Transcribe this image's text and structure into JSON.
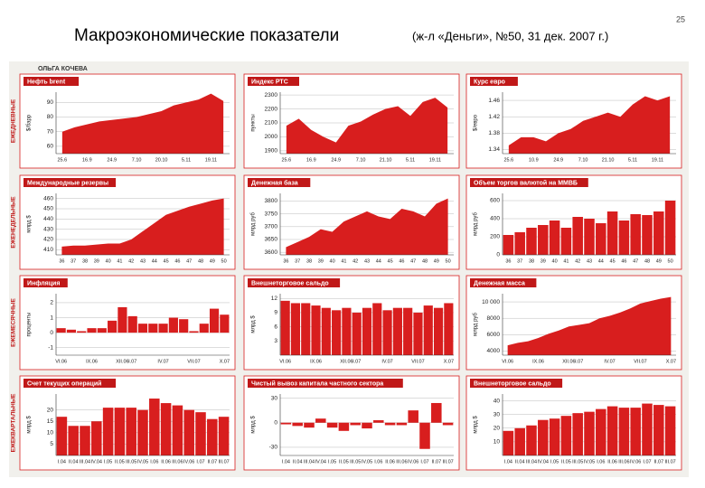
{
  "title": "Макроэкономические показатели",
  "subtitle": "(ж-л «Деньги», №50, 31 дек. 2007 г.)",
  "page_number": "25",
  "author": "ОЛЬГА КОЧЕВА",
  "row_labels": [
    "ЕЖЕДНЕВНЫЕ",
    "ЕЖЕНЕДЕЛЬНЫЕ",
    "ЕЖЕМЕСЯЧНЫЕ",
    "ЕЖЕКВАРТАЛЬНЫЕ"
  ],
  "chart_data": [
    {
      "type": "area",
      "title": "Нефть brent",
      "y_label": "$/барр",
      "color": "#d81e1e",
      "grid": true,
      "categories": [
        "25.6",
        null,
        "16.9",
        null,
        "24.9",
        null,
        "7.10",
        null,
        "20.10",
        null,
        "5.11",
        null,
        "19.11",
        null
      ],
      "values": [
        70,
        73,
        75,
        77,
        78,
        79,
        80,
        82,
        84,
        88,
        90,
        92,
        96,
        91
      ],
      "ylim": [
        55,
        97
      ],
      "yticks": [
        60,
        70,
        80,
        90
      ]
    },
    {
      "type": "area",
      "title": "Индекс РТС",
      "y_label": "пункты",
      "color": "#d81e1e",
      "grid": true,
      "categories": [
        "25.6",
        null,
        "16.9",
        null,
        "24.9",
        null,
        "7.10",
        null,
        "21.10",
        null,
        "5.11",
        null,
        "19.11",
        null
      ],
      "values": [
        2080,
        2130,
        2050,
        2000,
        1960,
        2080,
        2110,
        2160,
        2200,
        2220,
        2150,
        2250,
        2280,
        2210
      ],
      "ylim": [
        1880,
        2320
      ],
      "yticks": [
        1900,
        2000,
        2100,
        2200,
        2300
      ]
    },
    {
      "type": "area",
      "title": "Курс евро",
      "y_label": "$/евро",
      "color": "#d81e1e",
      "grid": true,
      "categories": [
        "25.6",
        null,
        "10.9",
        null,
        "24.9",
        null,
        "7.10",
        null,
        "21.10",
        null,
        "5.11",
        null,
        "19.11",
        null
      ],
      "values": [
        1.35,
        1.37,
        1.37,
        1.36,
        1.38,
        1.39,
        1.41,
        1.42,
        1.43,
        1.42,
        1.45,
        1.47,
        1.46,
        1.47
      ],
      "ylim": [
        1.33,
        1.48
      ],
      "yticks": [
        1.34,
        1.38,
        1.42,
        1.46
      ]
    },
    {
      "type": "area",
      "title": "Международные резервы",
      "y_label": "млрд $",
      "color": "#d81e1e",
      "grid": true,
      "categories": [
        "36",
        "37",
        "38",
        "39",
        "40",
        "41",
        "42",
        "43",
        "44",
        "45",
        "46",
        "47",
        "48",
        "49",
        "50"
      ],
      "values": [
        413,
        414,
        414,
        415,
        416,
        416,
        420,
        428,
        436,
        444,
        448,
        452,
        455,
        458,
        460
      ],
      "ylim": [
        405,
        465
      ],
      "yticks": [
        410,
        420,
        430,
        440,
        450,
        460
      ]
    },
    {
      "type": "area",
      "title": "Денежная база",
      "y_label": "млрд руб",
      "color": "#d81e1e",
      "grid": true,
      "categories": [
        "36",
        "37",
        "38",
        "39",
        "40",
        "41",
        "42",
        "43",
        "44",
        "45",
        "46",
        "47",
        "48",
        "49",
        "50"
      ],
      "values": [
        3620,
        3640,
        3660,
        3690,
        3680,
        3720,
        3740,
        3760,
        3740,
        3730,
        3770,
        3760,
        3740,
        3790,
        3810
      ],
      "ylim": [
        3590,
        3830
      ],
      "yticks": [
        3600,
        3650,
        3700,
        3750,
        3800
      ]
    },
    {
      "type": "bar",
      "title": "Объем торгов валютой на ММВБ",
      "y_label": "млрд руб",
      "color": "#d81e1e",
      "grid": true,
      "categories": [
        "36",
        "37",
        "38",
        "39",
        "40",
        "41",
        "42",
        "43",
        "44",
        "45",
        "46",
        "47",
        "48",
        "49",
        "50"
      ],
      "values": [
        220,
        250,
        300,
        330,
        380,
        300,
        420,
        400,
        350,
        480,
        380,
        450,
        440,
        480,
        600
      ],
      "ylim": [
        0,
        680
      ],
      "yticks": [
        0,
        200,
        400,
        600
      ]
    },
    {
      "type": "bar",
      "title": "Инфляция",
      "y_label": "проценты",
      "color": "#d81e1e",
      "grid": true,
      "categories": [
        "VI.06",
        null,
        null,
        "IX.06",
        null,
        null,
        "XII.06",
        "I.07",
        null,
        null,
        "IV.07",
        null,
        null,
        "VII.07",
        null,
        null,
        "X.07"
      ],
      "values": [
        0.3,
        0.2,
        0.1,
        0.3,
        0.3,
        0.8,
        1.7,
        1.1,
        0.6,
        0.6,
        0.6,
        1.0,
        0.9,
        0.1,
        0.6,
        1.6,
        1.2
      ],
      "ylim": [
        -1.5,
        2.6
      ],
      "yticks": [
        -1,
        0,
        1,
        2
      ]
    },
    {
      "type": "bar",
      "title": "Внешнеторговое сальдо",
      "y_label": "млрд $",
      "color": "#d81e1e",
      "grid": true,
      "categories": [
        "VI.06",
        null,
        null,
        "IX.06",
        null,
        null,
        "XII.06",
        "I.07",
        null,
        null,
        "IV.07",
        null,
        null,
        "VII.07",
        null,
        null,
        "X.07"
      ],
      "values": [
        11.5,
        11,
        11,
        10.5,
        10,
        9.5,
        10,
        9,
        10,
        11,
        9.5,
        10,
        10,
        9,
        10.5,
        10,
        11
      ],
      "ylim": [
        0,
        13
      ],
      "yticks": [
        3,
        6,
        9,
        12
      ]
    },
    {
      "type": "area",
      "title": "Денежная масса",
      "y_label": "млрд руб",
      "color": "#d81e1e",
      "grid": true,
      "categories": [
        "VI.06",
        null,
        null,
        "IX.06",
        null,
        null,
        "XII.06",
        "I.07",
        null,
        null,
        "IV.07",
        null,
        null,
        "VII.07",
        null,
        null,
        "X.07"
      ],
      "values": [
        4700,
        5000,
        5200,
        5600,
        6100,
        6500,
        7000,
        7200,
        7400,
        8000,
        8300,
        8700,
        9200,
        9800,
        10100,
        10400,
        10600
      ],
      "ylim": [
        3500,
        11000
      ],
      "yticks": [
        4000,
        6000,
        8000,
        {
          "value": 10000,
          "label": "10 000"
        }
      ]
    },
    {
      "type": "bar",
      "title": "Счет текущих операций",
      "y_label": "млрд $",
      "color": "#d81e1e",
      "grid": true,
      "categories": [
        "I.04",
        "II.04",
        "III.04",
        "IV.04",
        "I.05",
        "II.05",
        "III.05",
        "IV.05",
        "I.06",
        "II.06",
        "III.06",
        "IV.06",
        "I.07",
        "II.07",
        "III.07"
      ],
      "values": [
        17,
        13,
        13,
        15,
        21,
        21,
        21,
        20,
        25,
        23,
        22,
        20,
        19,
        16,
        17
      ],
      "ylim": [
        0,
        27
      ],
      "yticks": [
        5,
        10,
        15,
        20
      ]
    },
    {
      "type": "bar",
      "title": "Чистый вывоз капитала частного сектора",
      "y_label": "млрд $",
      "color": "#d81e1e",
      "grid": true,
      "categories": [
        "I.04",
        "II.04",
        "III.04",
        "IV.04",
        "I.05",
        "II.05",
        "III.05",
        "IV.05",
        "I.06",
        "II.06",
        "III.06",
        "IV.06",
        "I.07",
        "II.07",
        "III.07"
      ],
      "values": [
        -2,
        -4,
        -6,
        5,
        -6,
        -10,
        -3,
        -7,
        3,
        -3,
        -3,
        15,
        -32,
        24,
        -3
      ],
      "ylim": [
        -40,
        35
      ],
      "yticks": [
        -30,
        0,
        30
      ]
    },
    {
      "type": "bar",
      "title": "Внешнеторговое сальдо",
      "y_label": "млрд $",
      "color": "#d81e1e",
      "grid": true,
      "categories": [
        "I.04",
        "II.04",
        "III.04",
        "IV.04",
        "I.05",
        "II.05",
        "III.05",
        "IV.05",
        "I.06",
        "II.06",
        "III.06",
        "IV.06",
        "I.07",
        "II.07",
        "III.07"
      ],
      "values": [
        18,
        20,
        22,
        26,
        27,
        29,
        31,
        32,
        34,
        36,
        35,
        35,
        38,
        37,
        36
      ],
      "ylim": [
        0,
        45
      ],
      "yticks": [
        10,
        20,
        30,
        40
      ]
    }
  ]
}
